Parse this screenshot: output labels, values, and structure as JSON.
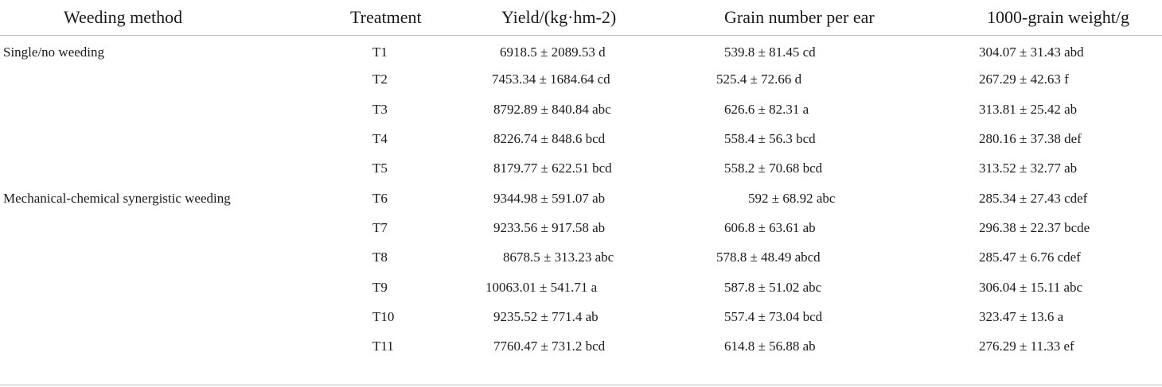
{
  "table": {
    "headers": {
      "method": "Weeding method",
      "treatment": "Treatment",
      "yield": "Yield/(kg·hm-2)",
      "grain_number": "Grain number per ear",
      "grain_weight": "1000-grain weight/g"
    },
    "rows": [
      {
        "method": "Single/no weeding",
        "treatment": "T1",
        "yield": "6918.5 ± 2089.53 d",
        "grain_number": "539.8 ± 81.45 cd",
        "grain_weight": "304.07 ± 31.43 abd"
      },
      {
        "method": "",
        "treatment": "T2",
        "yield": "7453.34 ± 1684.64 cd",
        "grain_number": "525.4 ± 72.66 d",
        "grain_weight": "267.29 ± 42.63 f"
      },
      {
        "method": "",
        "treatment": "T3",
        "yield": "8792.89 ± 840.84 abc",
        "grain_number": "626.6 ± 82.31 a",
        "grain_weight": "313.81 ± 25.42 ab"
      },
      {
        "method": "",
        "treatment": "T4",
        "yield": "8226.74 ± 848.6 bcd",
        "grain_number": "558.4 ± 56.3 bcd",
        "grain_weight": "280.16 ± 37.38 def"
      },
      {
        "method": "",
        "treatment": "T5",
        "yield": "8179.77 ± 622.51 bcd",
        "grain_number": "558.2 ± 70.68 bcd",
        "grain_weight": "313.52 ± 32.77 ab"
      },
      {
        "method": "Mechanical-chemical synergistic weeding",
        "treatment": "T6",
        "yield": "9344.98 ± 591.07 ab",
        "grain_number": "592 ± 68.92 abc",
        "grain_weight": "285.34 ± 27.43 cdef"
      },
      {
        "method": "",
        "treatment": "T7",
        "yield": "9233.56 ± 917.58 ab",
        "grain_number": "606.8 ± 63.61 ab",
        "grain_weight": "296.38 ± 22.37 bcde"
      },
      {
        "method": "",
        "treatment": "T8",
        "yield": "8678.5 ± 313.23 abc",
        "grain_number": "578.8 ± 48.49 abcd",
        "grain_weight": "285.47 ± 6.76 cdef"
      },
      {
        "method": "",
        "treatment": "T9",
        "yield": "10063.01 ± 541.71 a",
        "grain_number": "587.8 ± 51.02 abc",
        "grain_weight": "306.04 ± 15.11 abc"
      },
      {
        "method": "",
        "treatment": "T10",
        "yield": "9235.52 ± 771.4 ab",
        "grain_number": "557.4 ± 73.04 bcd",
        "grain_weight": "323.47 ± 13.6 a"
      },
      {
        "method": "",
        "treatment": "T11",
        "yield": "7760.47 ± 731.2 bcd",
        "grain_number": "614.8 ± 56.88 ab",
        "grain_weight": "276.29 ± 11.33 ef"
      }
    ]
  }
}
